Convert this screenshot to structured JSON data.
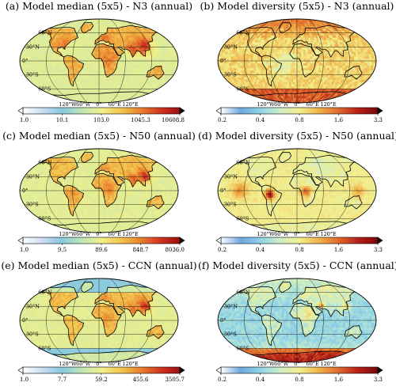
{
  "panels": [
    {
      "title": "(a) Model median (5x5) - N3  (annual)",
      "palette": "median",
      "colorbar_ticks": [
        "1.0",
        "10.1",
        "103.0",
        "1045.3",
        "10608.8"
      ],
      "field": "n3_median"
    },
    {
      "title": "(b) Model diversity (5x5) - N3  (annual)",
      "palette": "diversity",
      "colorbar_ticks": [
        "0.2",
        "0.4",
        "0.8",
        "1.6",
        "3.3"
      ],
      "field": "n3_div"
    },
    {
      "title": "(c) Model median (5x5) - N50  (annual)",
      "palette": "median",
      "colorbar_ticks": [
        "1.0",
        "9.5",
        "89.6",
        "848.7",
        "8036.0"
      ],
      "field": "n50_median"
    },
    {
      "title": "(d) Model diversity (5x5) - N50  (annual)",
      "palette": "diversity",
      "colorbar_ticks": [
        "0.2",
        "0.4",
        "0.8",
        "1.6",
        "3.3"
      ],
      "field": "n50_div"
    },
    {
      "title": "(e) Model median (5x5) - CCN  (annual)",
      "palette": "median",
      "colorbar_ticks": [
        "1.0",
        "7.7",
        "59.2",
        "455.6",
        "3505.7"
      ],
      "field": "ccn_median"
    },
    {
      "title": "(f) Model diversity (5x5) - CCN  (annual)",
      "palette": "diversity",
      "colorbar_ticks": [
        "0.2",
        "0.4",
        "0.8",
        "1.6",
        "3.3"
      ],
      "field": "ccn_div"
    }
  ],
  "lat_labels": [
    "60°N",
    "30°N",
    "0°",
    "30°S",
    "60°S"
  ],
  "lon_labels": [
    "120°W",
    "60°W",
    "0°",
    "60°E",
    "120°E"
  ],
  "colors": {
    "median_ramp": [
      "#ffffff",
      "#c9dcf2",
      "#86c8e0",
      "#bfe6b4",
      "#f1f08a",
      "#f4c54e",
      "#e9812f",
      "#d3341f",
      "#9a0d0d"
    ],
    "diversity_ramp": [
      "#ffffff",
      "#6ea6df",
      "#8fd3e8",
      "#cdeec8",
      "#f3ef8e",
      "#f0b34a",
      "#e06a2c",
      "#b81f18",
      "#7a0707"
    ],
    "coast": "#000000",
    "graticule": "#000000"
  }
}
